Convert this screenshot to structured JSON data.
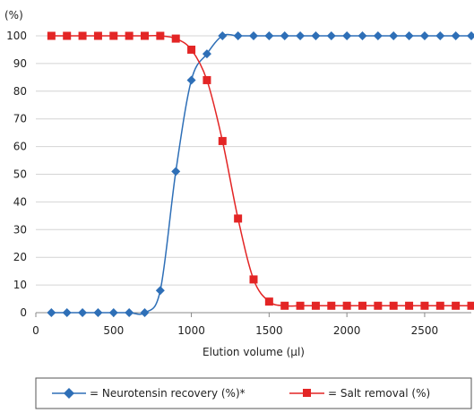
{
  "chart_data": {
    "type": "line",
    "title": "",
    "xlabel": "Elution volume (µl)",
    "ylabel": "(%)",
    "xlim": [
      0,
      2800
    ],
    "ylim": [
      0,
      100
    ],
    "x_ticks": [
      0,
      500,
      1000,
      1500,
      2000,
      2500
    ],
    "y_ticks": [
      0,
      10,
      20,
      30,
      40,
      50,
      60,
      70,
      80,
      90,
      100
    ],
    "grid": "horizontal",
    "legend_position": "bottom",
    "series": [
      {
        "name": "= Neurotensin recovery (%)*",
        "color": "#2e6fb7",
        "marker": "diamond",
        "x": [
          100,
          200,
          300,
          400,
          500,
          600,
          700,
          800,
          900,
          1000,
          1100,
          1200,
          1300,
          1400,
          1500,
          1600,
          1700,
          1800,
          1900,
          2000,
          2100,
          2200,
          2300,
          2400,
          2500,
          2600,
          2700,
          2800
        ],
        "y": [
          0,
          0,
          0,
          0,
          0,
          0,
          0,
          8,
          51,
          84,
          93.5,
          100,
          100,
          100,
          100,
          100,
          100,
          100,
          100,
          100,
          100,
          100,
          100,
          100,
          100,
          100,
          100,
          100
        ]
      },
      {
        "name": "= Salt removal (%)",
        "color": "#e32525",
        "marker": "square",
        "x": [
          100,
          200,
          300,
          400,
          500,
          600,
          700,
          800,
          900,
          1000,
          1100,
          1200,
          1300,
          1400,
          1500,
          1600,
          1700,
          1800,
          1900,
          2000,
          2100,
          2200,
          2300,
          2400,
          2500,
          2600,
          2700,
          2800
        ],
        "y": [
          100,
          100,
          100,
          100,
          100,
          100,
          100,
          100,
          99,
          95,
          84,
          62,
          34,
          12,
          4,
          2.5,
          2.5,
          2.5,
          2.5,
          2.5,
          2.5,
          2.5,
          2.5,
          2.5,
          2.5,
          2.5,
          2.5,
          2.5
        ]
      }
    ]
  }
}
